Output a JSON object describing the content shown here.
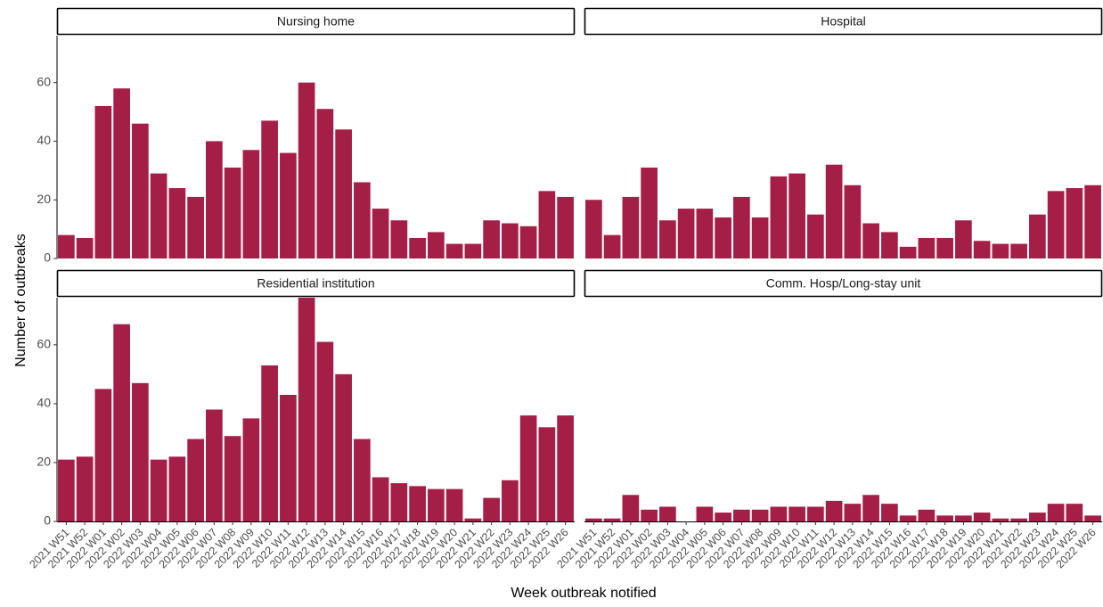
{
  "chart_data": {
    "type": "bar",
    "xlabel": "Week outbreak notified",
    "ylabel": "Number of outbreaks",
    "ylim": [
      0,
      76
    ],
    "y_ticks": [
      0,
      20,
      40,
      60
    ],
    "bar_color": "#A41E45",
    "categories": [
      "2021 W51",
      "2021 W52",
      "2022 W01",
      "2022 W02",
      "2022 W03",
      "2022 W04",
      "2022 W05",
      "2022 W06",
      "2022 W07",
      "2022 W08",
      "2022 W09",
      "2022 W10",
      "2022 W11",
      "2022 W12",
      "2022 W13",
      "2022 W14",
      "2022 W15",
      "2022 W16",
      "2022 W17",
      "2022 W18",
      "2022 W19",
      "2022 W20",
      "2022 W21",
      "2022 W22",
      "2022 W23",
      "2022 W24",
      "2022 W25",
      "2022 W26"
    ],
    "panels": [
      {
        "title": "Nursing home",
        "values": [
          8,
          7,
          52,
          58,
          46,
          29,
          24,
          21,
          40,
          31,
          37,
          47,
          36,
          60,
          51,
          44,
          26,
          17,
          13,
          7,
          9,
          5,
          5,
          13,
          12,
          11,
          23,
          21
        ]
      },
      {
        "title": "Hospital",
        "values": [
          20,
          8,
          21,
          31,
          13,
          17,
          17,
          14,
          21,
          14,
          28,
          29,
          15,
          32,
          25,
          12,
          9,
          4,
          7,
          7,
          13,
          6,
          5,
          5,
          15,
          23,
          24,
          25
        ]
      },
      {
        "title": "Residential institution",
        "values": [
          21,
          22,
          45,
          67,
          47,
          21,
          22,
          28,
          38,
          29,
          35,
          53,
          43,
          77,
          61,
          50,
          28,
          15,
          13,
          12,
          11,
          11,
          1,
          8,
          14,
          36,
          32,
          36
        ]
      },
      {
        "title": "Comm. Hosp/Long-stay unit",
        "values": [
          1,
          1,
          9,
          4,
          5,
          0,
          5,
          3,
          4,
          4,
          5,
          5,
          5,
          7,
          6,
          9,
          6,
          2,
          4,
          2,
          2,
          3,
          1,
          1,
          3,
          6,
          6,
          2
        ]
      }
    ]
  }
}
